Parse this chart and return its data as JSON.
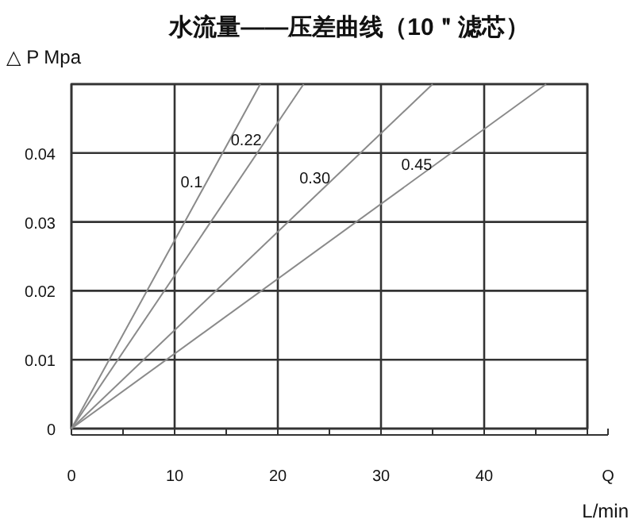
{
  "chart_data": {
    "type": "line",
    "title": "水流量——压差曲线（10＂滤芯）",
    "xlabel": "Q",
    "ylabel": "△ P Mpa",
    "annotations": [
      "L/min"
    ],
    "series": [
      {
        "name": "0.1",
        "color": "#8a8a8a",
        "x": [
          0,
          18.3
        ],
        "values": [
          0,
          0.05
        ]
      },
      {
        "name": "0.22",
        "color": "#8a8a8a",
        "x": [
          0,
          22.5
        ],
        "values": [
          0,
          0.05
        ]
      },
      {
        "name": "0.30",
        "color": "#8a8a8a",
        "x": [
          0,
          35
        ],
        "values": [
          0,
          0.05
        ]
      },
      {
        "name": "0.45",
        "color": "#8a8a8a",
        "x": [
          0,
          46
        ],
        "values": [
          0,
          0.05
        ]
      }
    ],
    "xlim": [
      0,
      50
    ],
    "ylim": [
      0,
      0.05
    ],
    "xticks": [
      0,
      {
        "value": 5,
        "label": null
      },
      10,
      {
        "value": 15,
        "label": null
      },
      20,
      {
        "value": 25,
        "label": null
      },
      30,
      {
        "value": 35,
        "label": null
      },
      40,
      {
        "value": 45,
        "label": null
      },
      {
        "value": 50,
        "label": null
      }
    ],
    "yticks": [
      0,
      0.01,
      0.02,
      0.03,
      0.04,
      {
        "value": 0.05,
        "label": null
      }
    ],
    "grid": true,
    "marker": "none",
    "line_style": "solid"
  }
}
